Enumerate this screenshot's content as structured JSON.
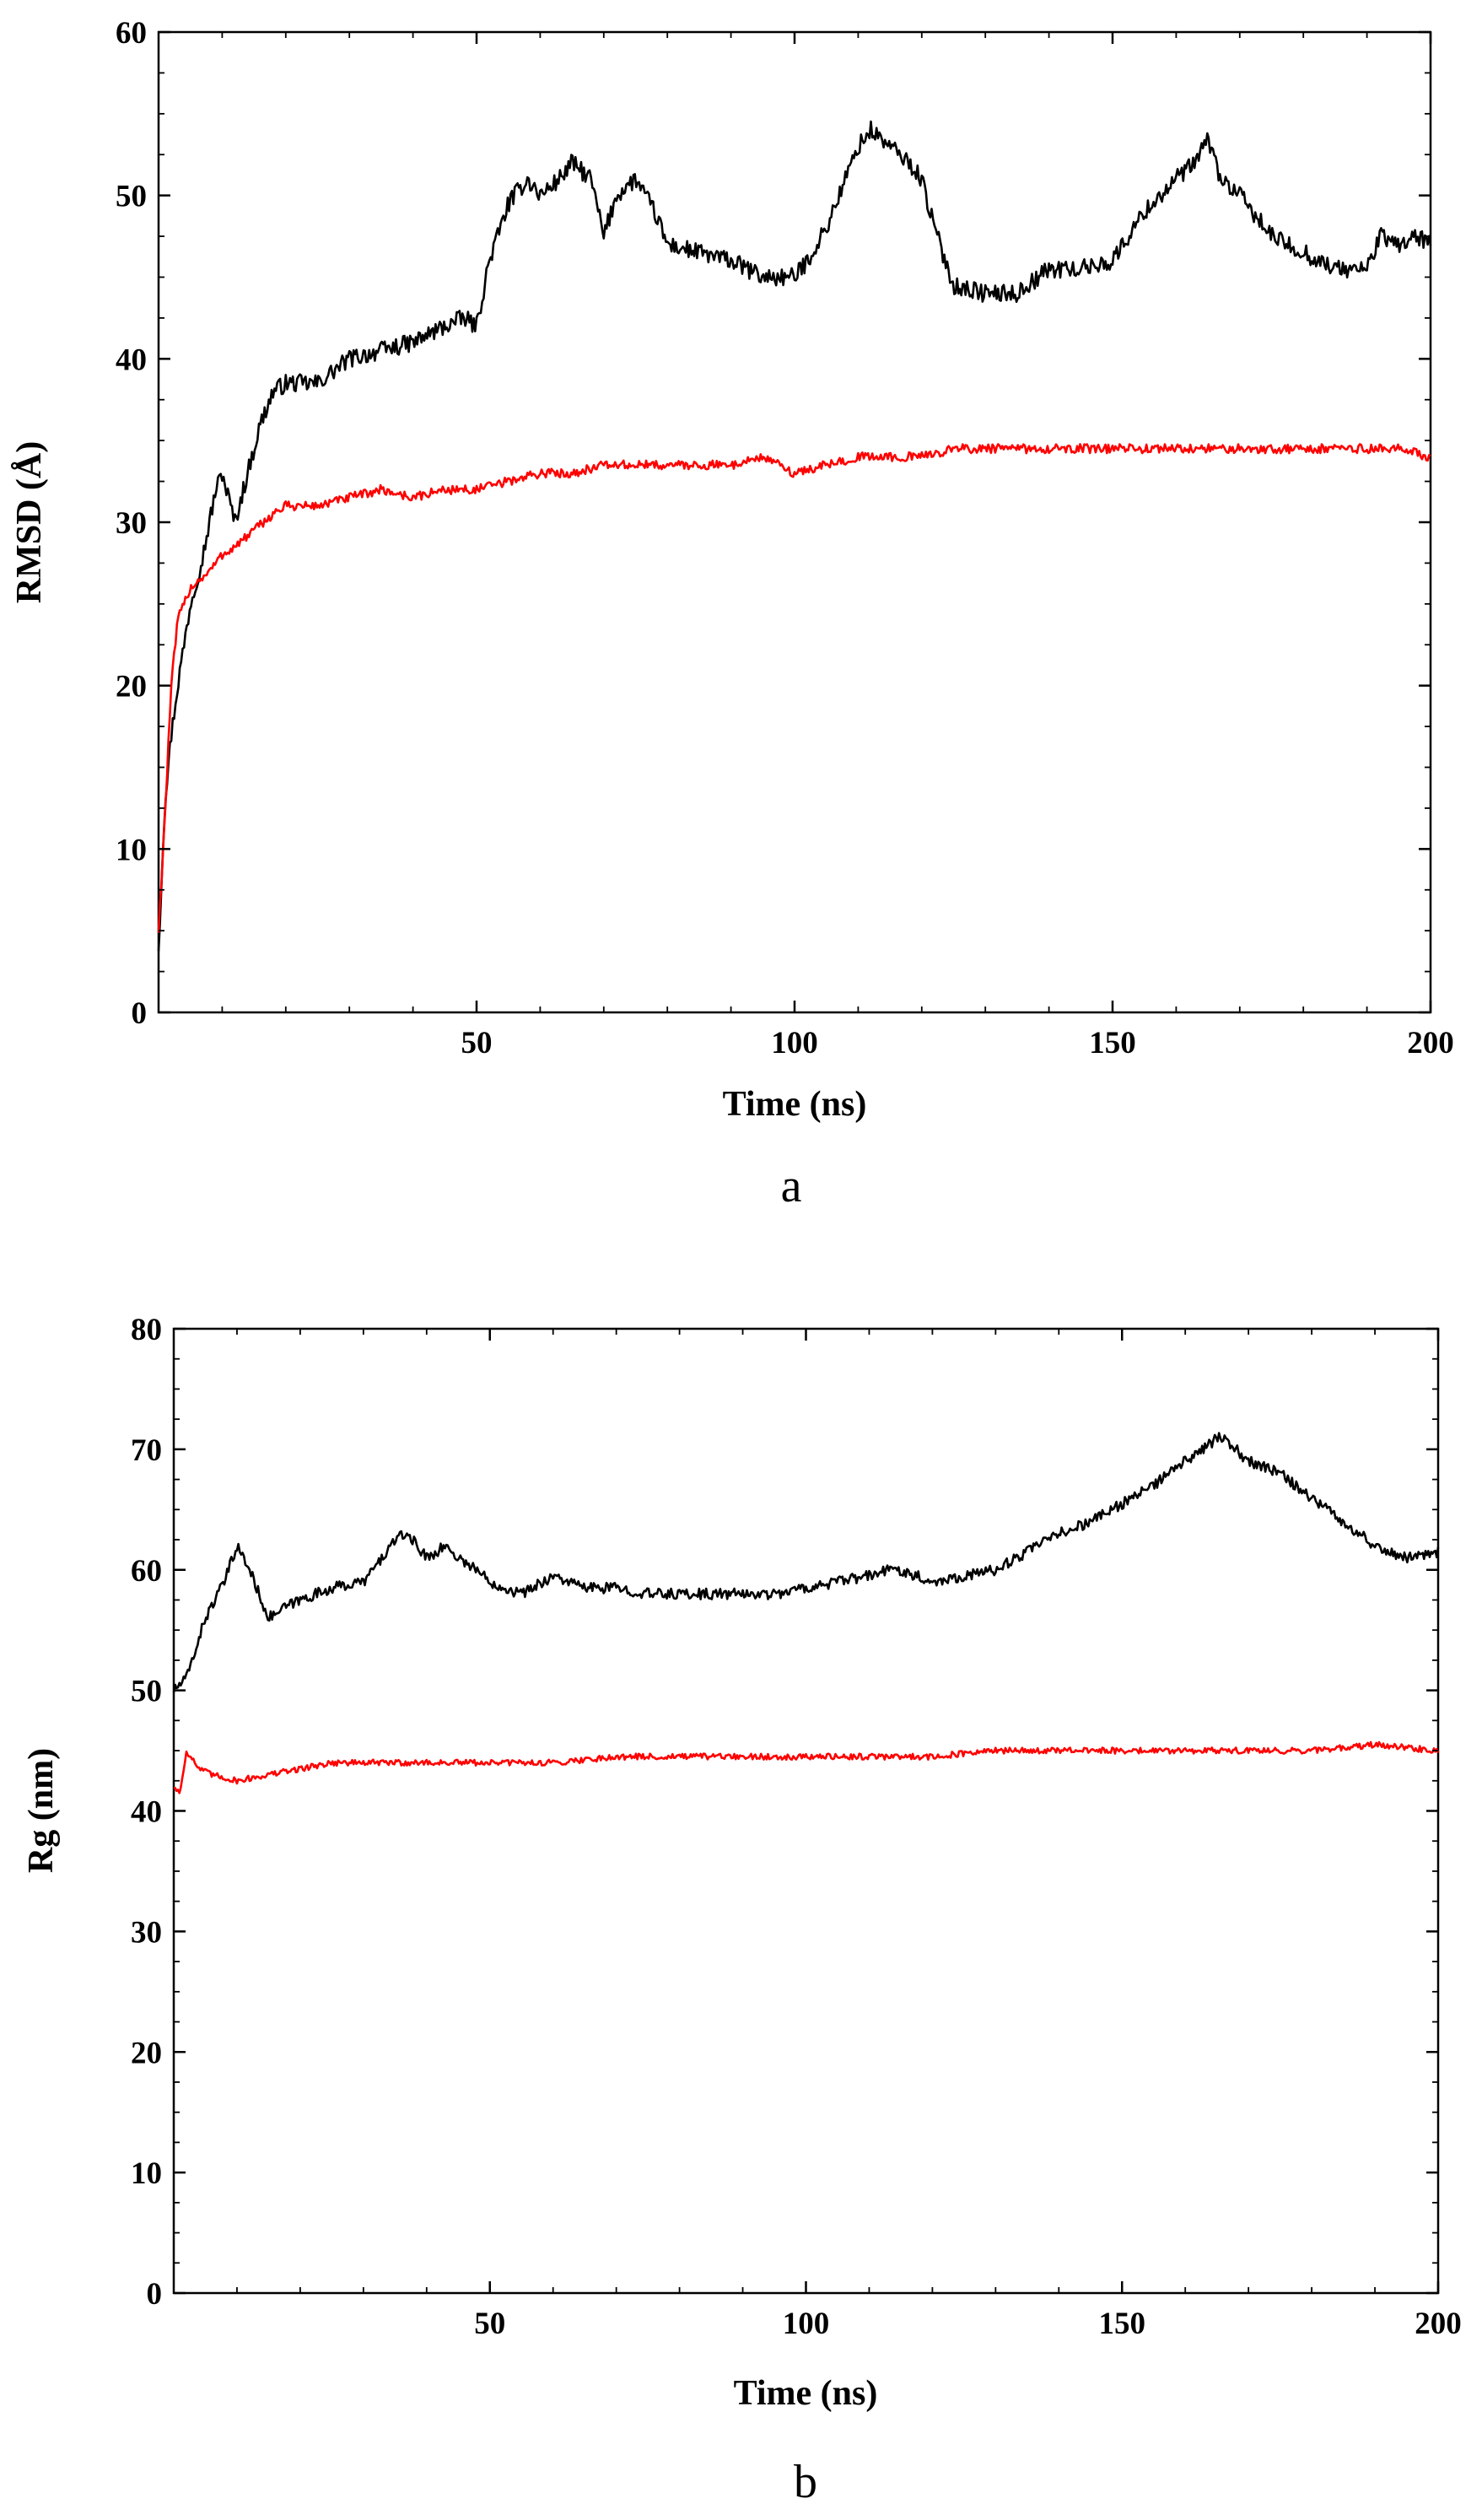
{
  "chart_data": [
    {
      "type": "line",
      "panel_label": "a",
      "xlabel": "Time (ns)",
      "ylabel": "RMSD (Å)",
      "xlim": [
        0,
        200
      ],
      "ylim": [
        0,
        60
      ],
      "xticks": [
        "50",
        "100",
        "150",
        "200"
      ],
      "yticks": [
        "0",
        "10",
        "20",
        "30",
        "40",
        "50",
        "60"
      ],
      "grid": false,
      "legend": "none",
      "series": [
        {
          "color": "#000000",
          "x": [
            0,
            1,
            2,
            3,
            5,
            7,
            9,
            10,
            12,
            14,
            16,
            18,
            20,
            25,
            30,
            35,
            40,
            45,
            48,
            50,
            52,
            55,
            58,
            60,
            63,
            65,
            68,
            70,
            72,
            75,
            78,
            80,
            85,
            90,
            95,
            100,
            102,
            105,
            108,
            110,
            112,
            115,
            118,
            120,
            122,
            125,
            130,
            135,
            140,
            145,
            150,
            155,
            160,
            163,
            165,
            167,
            170,
            175,
            180,
            185,
            190,
            192,
            195,
            198,
            200
          ],
          "y": [
            4,
            13,
            17,
            20,
            25,
            28,
            32,
            33,
            30,
            33,
            36,
            38,
            38.5,
            38.5,
            40,
            40.5,
            41,
            42,
            42.5,
            42,
            46,
            49.5,
            51,
            50,
            51,
            52,
            51,
            47.5,
            50,
            51,
            49,
            47,
            46.5,
            46,
            45,
            45,
            46,
            48,
            51,
            53,
            54,
            53,
            52,
            51,
            48,
            44.5,
            44,
            44,
            45.5,
            45.5,
            46,
            49,
            51,
            52,
            53.5,
            51,
            50,
            47.5,
            46.5,
            45.5,
            45.5,
            47.5,
            47,
            47.5,
            47
          ]
        },
        {
          "color": "#ff0000",
          "x": [
            0,
            1,
            2,
            3,
            5,
            8,
            10,
            12,
            15,
            18,
            20,
            25,
            30,
            35,
            40,
            45,
            50,
            55,
            60,
            65,
            70,
            75,
            80,
            85,
            90,
            95,
            100,
            105,
            110,
            115,
            120,
            125,
            130,
            135,
            140,
            145,
            150,
            155,
            160,
            165,
            170,
            175,
            180,
            185,
            190,
            195,
            200
          ],
          "y": [
            5,
            12,
            20,
            24,
            26,
            27,
            28,
            28.5,
            29.5,
            30.5,
            31,
            31,
            31.5,
            32,
            31.5,
            32,
            32,
            32.5,
            33,
            33,
            33.5,
            33.5,
            33.5,
            33.5,
            33.5,
            34,
            33,
            33.5,
            34,
            34,
            34,
            34.5,
            34.5,
            34.5,
            34.5,
            34.5,
            34.5,
            34.5,
            34.5,
            34.5,
            34.5,
            34.5,
            34.5,
            34.5,
            34.5,
            34.5,
            34
          ]
        }
      ]
    },
    {
      "type": "line",
      "panel_label": "b",
      "xlabel": "Time (ns)",
      "ylabel": "Rg (nm)",
      "xlim": [
        0,
        200
      ],
      "ylim": [
        0,
        80
      ],
      "xticks": [
        "50",
        "100",
        "150",
        "200"
      ],
      "yticks": [
        "0",
        "10",
        "20",
        "30",
        "40",
        "50",
        "60",
        "70",
        "80"
      ],
      "grid": false,
      "legend": "none",
      "series": [
        {
          "color": "#000000",
          "x": [
            0,
            2,
            5,
            8,
            10,
            12,
            15,
            18,
            20,
            25,
            30,
            33,
            35,
            37,
            40,
            43,
            45,
            48,
            50,
            55,
            60,
            65,
            70,
            75,
            80,
            85,
            90,
            95,
            100,
            105,
            110,
            113,
            115,
            120,
            125,
            130,
            135,
            140,
            145,
            150,
            155,
            160,
            163,
            165,
            167,
            170,
            175,
            180,
            185,
            190,
            195,
            200
          ],
          "y": [
            50,
            51,
            56,
            59,
            62,
            60,
            56,
            57,
            57.5,
            58.5,
            59,
            61,
            62.5,
            63,
            61,
            62,
            61,
            60,
            59,
            58,
            59.5,
            58.5,
            58.5,
            58,
            58,
            58,
            58,
            58,
            58.5,
            59,
            59.5,
            60,
            60,
            59,
            59.5,
            60,
            61.5,
            63,
            64,
            65.5,
            67,
            69,
            70,
            71,
            70.5,
            69,
            68,
            66,
            64,
            62,
            61,
            61.5
          ]
        },
        {
          "color": "#ff0000",
          "x": [
            0,
            1,
            2,
            4,
            6,
            10,
            15,
            20,
            25,
            30,
            40,
            50,
            60,
            70,
            80,
            90,
            100,
            110,
            120,
            130,
            140,
            150,
            160,
            170,
            180,
            190,
            200
          ],
          "y": [
            42,
            41.5,
            45,
            43.5,
            43,
            42.5,
            43,
            43.5,
            44,
            44,
            44,
            44,
            44,
            44.5,
            44.5,
            44.5,
            44.5,
            44.5,
            44.5,
            45,
            45,
            45,
            45,
            45,
            45,
            45.5,
            45
          ]
        }
      ]
    }
  ]
}
